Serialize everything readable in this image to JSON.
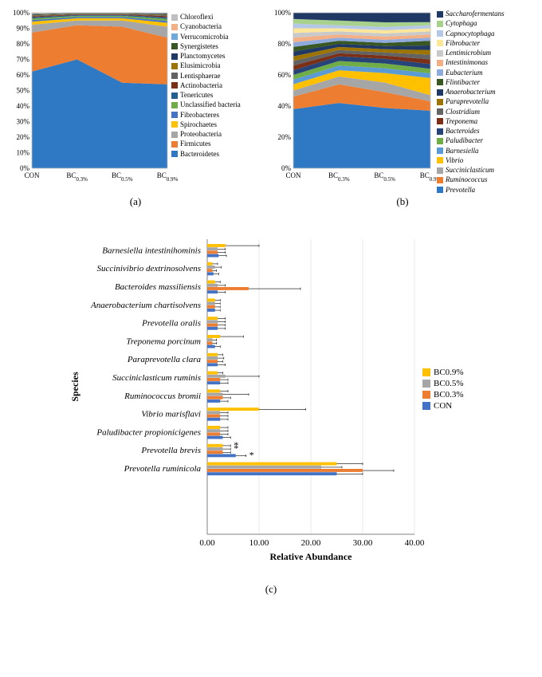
{
  "panelA": {
    "type": "area-stacked",
    "x_categories": [
      "CON",
      "BC0.3%",
      "BC0.5%",
      "BC0.9%"
    ],
    "y_ticks": [
      "0%",
      "10%",
      "20%",
      "30%",
      "40%",
      "50%",
      "60%",
      "70%",
      "80%",
      "90%",
      "100%"
    ],
    "ylim": [
      0,
      100
    ],
    "background": "#ffffff",
    "grid_color": "#d9d9d9",
    "x_sub_format": "subscript-percent",
    "series": [
      {
        "name": "Bacteroidetes",
        "color": "#2f78c4",
        "values": [
          62,
          70,
          55,
          54
        ]
      },
      {
        "name": "Firmicutes",
        "color": "#ed7d31",
        "values": [
          25,
          22,
          36,
          30
        ]
      },
      {
        "name": "Proteobacteria",
        "color": "#a6a6a6",
        "values": [
          5,
          3,
          4,
          7
        ]
      },
      {
        "name": "Spirochaetes",
        "color": "#ffc000",
        "values": [
          2,
          1.5,
          1.5,
          2.5
        ]
      },
      {
        "name": "Fibrobacteres",
        "color": "#4472c4",
        "values": [
          1,
          0.8,
          0.8,
          1.2
        ]
      },
      {
        "name": "Unclassified bacteria",
        "color": "#70ad47",
        "values": [
          1,
          0.7,
          0.7,
          1.3
        ]
      },
      {
        "name": "Tenericutes",
        "color": "#255e91",
        "values": [
          0.8,
          0.5,
          0.5,
          1
        ]
      },
      {
        "name": "Actinobacteria",
        "color": "#7b2f17",
        "values": [
          0.6,
          0.4,
          0.4,
          0.8
        ]
      },
      {
        "name": "Lentisphaerae",
        "color": "#636363",
        "values": [
          0.5,
          0.3,
          0.3,
          0.6
        ]
      },
      {
        "name": "Elusimicrobia",
        "color": "#9e7400",
        "values": [
          0.4,
          0.2,
          0.2,
          0.4
        ]
      },
      {
        "name": "Planctomycetes",
        "color": "#1f3864",
        "values": [
          0.3,
          0.2,
          0.2,
          0.4
        ]
      },
      {
        "name": "Synergistetes",
        "color": "#385723",
        "values": [
          0.3,
          0.2,
          0.2,
          0.3
        ]
      },
      {
        "name": "Verrucomicrobia",
        "color": "#6fa8dc",
        "values": [
          0.3,
          0.1,
          0.1,
          0.2
        ]
      },
      {
        "name": "Cyanobacteria",
        "color": "#f4b084",
        "values": [
          0.3,
          0.05,
          0.05,
          0.15
        ]
      },
      {
        "name": "Chloroflexi",
        "color": "#bfbfbf",
        "values": [
          0.2,
          0.05,
          0.05,
          0.15
        ]
      }
    ],
    "legend_order": [
      "Chloroflexi",
      "Cyanobacteria",
      "Verrucomicrobia",
      "Synergistetes",
      "Planctomycetes",
      "Elusimicrobia",
      "Lentisphaerae",
      "Actinobacteria",
      "Tenericutes",
      "Unclassified bacteria",
      "Fibrobacteres",
      "Spirochaetes",
      "Proteobacteria",
      "Firmicutes",
      "Bacteroidetes"
    ],
    "label": "(a)"
  },
  "panelB": {
    "type": "area-stacked",
    "x_categories": [
      "CON",
      "BC0.3%",
      "BC0.5%",
      "BC0.9%"
    ],
    "y_ticks": [
      "0%",
      "20%",
      "40%",
      "60%",
      "80%",
      "100%"
    ],
    "ylim": [
      0,
      100
    ],
    "background": "#ffffff",
    "grid_color": "#d9d9d9",
    "x_sub_format": "subscript-percent",
    "series": [
      {
        "name": "Prevotella",
        "color": "#2f78c4",
        "values": [
          38,
          42,
          38,
          37
        ]
      },
      {
        "name": "Ruminococcus",
        "color": "#ed7d31",
        "values": [
          8,
          12,
          10,
          6
        ]
      },
      {
        "name": "Succiniclasticum",
        "color": "#a6a6a6",
        "values": [
          4,
          5,
          6,
          4
        ]
      },
      {
        "name": "Vibrio",
        "color": "#ffc000",
        "values": [
          4,
          4,
          6,
          11
        ]
      },
      {
        "name": "Barnesiella",
        "color": "#5b9bd5",
        "values": [
          3,
          3,
          3,
          3
        ]
      },
      {
        "name": "Paludibacter",
        "color": "#70ad47",
        "values": [
          3,
          3,
          3,
          3
        ]
      },
      {
        "name": "Bacteroides",
        "color": "#264478",
        "values": [
          3,
          3,
          3,
          3
        ]
      },
      {
        "name": "Treponema",
        "color": "#7b2f17",
        "values": [
          3,
          2,
          2,
          3
        ]
      },
      {
        "name": "Clostridium",
        "color": "#636363",
        "values": [
          3,
          2,
          2,
          3
        ]
      },
      {
        "name": "Paraprevotella",
        "color": "#9e7400",
        "values": [
          3,
          2,
          2,
          3
        ]
      },
      {
        "name": "Anaerobacterium",
        "color": "#1f3864",
        "values": [
          3,
          2,
          2,
          3
        ]
      },
      {
        "name": "Flintibacter",
        "color": "#385723",
        "values": [
          3,
          2,
          2,
          3
        ]
      },
      {
        "name": "Eubacterium",
        "color": "#8faadc",
        "values": [
          3,
          2,
          2,
          2
        ]
      },
      {
        "name": "Intestinimonas",
        "color": "#f4b084",
        "values": [
          3,
          2,
          2,
          2
        ]
      },
      {
        "name": "Lentimicrobium",
        "color": "#c9c9c9",
        "values": [
          3,
          2,
          2,
          2
        ]
      },
      {
        "name": "Fibrobacter",
        "color": "#ffe699",
        "values": [
          3,
          2,
          2,
          2
        ]
      },
      {
        "name": "Capnocytophaga",
        "color": "#b4c7e7",
        "values": [
          3,
          2,
          2,
          2
        ]
      },
      {
        "name": "Cytophaga",
        "color": "#a9d18e",
        "values": [
          3,
          3,
          3,
          2
        ]
      },
      {
        "name": "Saccharofermentans",
        "color": "#203864",
        "values": [
          4,
          5,
          6,
          6
        ]
      }
    ],
    "legend_order": [
      "Saccharofermentans",
      "Cytophaga",
      "Capnocytophaga",
      "Fibrobacter",
      "Lentimicrobium",
      "Intestinimonas",
      "Eubacterium",
      "Flintibacter",
      "Anaerobacterium",
      "Paraprevotella",
      "Clostridium",
      "Treponema",
      "Bacteroides",
      "Paludibacter",
      "Barnesiella",
      "Vibrio",
      "Succiniclasticum",
      "Ruminococcus",
      "Prevotella"
    ],
    "label": "(b)"
  },
  "panelC": {
    "type": "grouped-horizontal-bar",
    "x_label": "Relative Abundance",
    "y_label": "Species",
    "x_ticks": [
      0,
      10,
      20,
      30,
      40
    ],
    "x_tick_labels": [
      "0.00",
      "10.00",
      "20.00",
      "30.00",
      "40.00"
    ],
    "xlim": [
      0,
      40
    ],
    "background": "#ffffff",
    "grid_color": "#d9d9d9",
    "bar_gap": 0,
    "group_gap": 6,
    "bar_thickness": 4.2,
    "groups_top_to_bottom": [
      "Barnesiella intestinihominis",
      "Succinivibrio dextrinosolvens",
      "Bacteroides massiliensis",
      "Anaerobacterium chartisolvens",
      "Prevotella oralis",
      "Treponema porcinum",
      "Paraprevotella clara",
      "Succiniclasticum ruminis",
      "Ruminococcus bromii",
      "Vibrio marisflavi",
      "Paludibacter propionicigenes",
      "Prevotella brevis",
      "Prevotella ruminicola"
    ],
    "series_order_top_to_bottom": [
      "BC0.9%",
      "BC0.5%",
      "BC0.3%",
      "CON"
    ],
    "series": {
      "BC0.9%": {
        "color": "#ffc000"
      },
      "BC0.5%": {
        "color": "#a6a6a6"
      },
      "BC0.3%": {
        "color": "#ed7d31"
      },
      "CON": {
        "color": "#4472c4"
      }
    },
    "values": {
      "Barnesiella intestinihominis": {
        "BC0.9%": 3.5,
        "BC0.5%": 2.0,
        "BC0.3%": 2.0,
        "CON": 2.2,
        "err": {
          "BC0.9%": 6.5,
          "BC0.5%": 1.5,
          "BC0.3%": 1.5,
          "CON": 1.5
        }
      },
      "Succinivibrio dextrinosolvens": {
        "BC0.9%": 1.0,
        "BC0.5%": 1.5,
        "BC0.3%": 1.0,
        "CON": 1.2,
        "err": {
          "BC0.9%": 1.0,
          "BC0.5%": 1.2,
          "BC0.3%": 0.8,
          "CON": 1.0
        }
      },
      "Bacteroides massiliensis": {
        "BC0.9%": 1.5,
        "BC0.5%": 2.0,
        "BC0.3%": 8.0,
        "CON": 2.0,
        "err": {
          "BC0.9%": 1.0,
          "BC0.5%": 1.5,
          "BC0.3%": 10.0,
          "CON": 1.5
        }
      },
      "Anaerobacterium chartisolvens": {
        "BC0.9%": 1.5,
        "BC0.5%": 1.5,
        "BC0.3%": 1.5,
        "CON": 1.5,
        "err": {
          "BC0.9%": 1.0,
          "BC0.5%": 1.0,
          "BC0.3%": 1.0,
          "CON": 1.0
        }
      },
      "Prevotella oralis": {
        "BC0.9%": 2.0,
        "BC0.5%": 2.0,
        "BC0.3%": 2.0,
        "CON": 2.0,
        "err": {
          "BC0.9%": 1.5,
          "BC0.5%": 1.5,
          "BC0.3%": 1.5,
          "CON": 1.5
        }
      },
      "Treponema porcinum": {
        "BC0.9%": 2.5,
        "BC0.5%": 1.0,
        "BC0.3%": 1.0,
        "CON": 1.5,
        "err": {
          "BC0.9%": 4.5,
          "BC0.5%": 0.8,
          "BC0.3%": 0.8,
          "CON": 1.0
        }
      },
      "Paraprevotella clara": {
        "BC0.9%": 2.0,
        "BC0.5%": 2.0,
        "BC0.3%": 2.0,
        "CON": 2.0,
        "err": {
          "BC0.9%": 1.0,
          "BC0.5%": 1.2,
          "BC0.3%": 1.0,
          "CON": 1.5
        }
      },
      "Succiniclasticum ruminis": {
        "BC0.9%": 2.0,
        "BC0.5%": 3.5,
        "BC0.3%": 2.5,
        "CON": 2.5,
        "err": {
          "BC0.9%": 1.0,
          "BC0.5%": 6.5,
          "BC0.3%": 1.5,
          "CON": 1.5
        }
      },
      "Ruminococcus bromii": {
        "BC0.9%": 2.5,
        "BC0.5%": 3.0,
        "BC0.3%": 3.0,
        "CON": 2.5,
        "err": {
          "BC0.9%": 1.5,
          "BC0.5%": 5.0,
          "BC0.3%": 1.5,
          "CON": 1.5
        }
      },
      "Vibrio marisflavi": {
        "BC0.9%": 10.0,
        "BC0.5%": 2.5,
        "BC0.3%": 2.5,
        "CON": 2.5,
        "err": {
          "BC0.9%": 9.0,
          "BC0.5%": 1.5,
          "BC0.3%": 1.5,
          "CON": 1.5
        }
      },
      "Paludibacter propionicigenes": {
        "BC0.9%": 2.5,
        "BC0.5%": 2.5,
        "BC0.3%": 2.5,
        "CON": 3.0,
        "err": {
          "BC0.9%": 1.5,
          "BC0.5%": 1.5,
          "BC0.3%": 1.5,
          "CON": 1.5
        }
      },
      "Prevotella brevis": {
        "BC0.9%": 3.0,
        "BC0.5%": 3.0,
        "BC0.3%": 3.0,
        "CON": 5.5,
        "err": {
          "BC0.9%": 1.5,
          "BC0.5%": 1.5,
          "BC0.3%": 1.5,
          "CON": 2.0
        },
        "sig": {
          "BC0.9%": "*",
          "BC0.5%": "*",
          "CON": "*"
        }
      },
      "Prevotella ruminicola": {
        "BC0.9%": 25.0,
        "BC0.5%": 22.0,
        "BC0.3%": 30.0,
        "CON": 25.0,
        "err": {
          "BC0.9%": 5.0,
          "BC0.5%": 4.0,
          "BC0.3%": 6.0,
          "CON": 5.0
        }
      }
    },
    "legend_order": [
      "BC0.9%",
      "BC0.5%",
      "BC0.3%",
      "CON"
    ],
    "label": "(c)"
  }
}
